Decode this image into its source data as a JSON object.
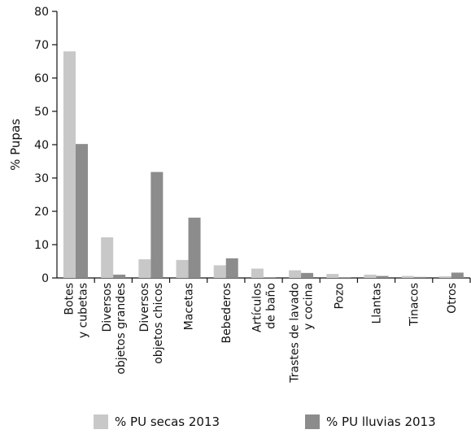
{
  "chart_data": {
    "type": "bar",
    "ylabel": "% Pupas",
    "ylim": [
      0,
      80
    ],
    "yticks": [
      0,
      10,
      20,
      30,
      40,
      50,
      60,
      70,
      80
    ],
    "categories": [
      [
        "Botes",
        "y cubetas"
      ],
      [
        "Diversos",
        "objetos grandes"
      ],
      [
        "Diversos",
        "objetos chicos"
      ],
      [
        "Macetas"
      ],
      [
        "Bebederos"
      ],
      [
        "Artículos",
        "de baño"
      ],
      [
        "Trastes de lavado",
        "y cocina"
      ],
      [
        "Pozo"
      ],
      [
        "Llantas"
      ],
      [
        "Tinacos"
      ],
      [
        "Otros"
      ]
    ],
    "series": [
      {
        "name": "% PU secas 2013",
        "color": "#c8c8c8",
        "values": [
          68,
          12.2,
          5.6,
          5.4,
          3.8,
          2.8,
          2.3,
          1.2,
          1.0,
          0.6,
          0.5
        ]
      },
      {
        "name": "% PU lluvias 2013",
        "color": "#8c8c8c",
        "values": [
          40.2,
          1.0,
          31.8,
          18.1,
          5.9,
          0.2,
          1.5,
          0.2,
          0.6,
          0.3,
          1.6
        ]
      }
    ],
    "legend_position": "bottom"
  }
}
